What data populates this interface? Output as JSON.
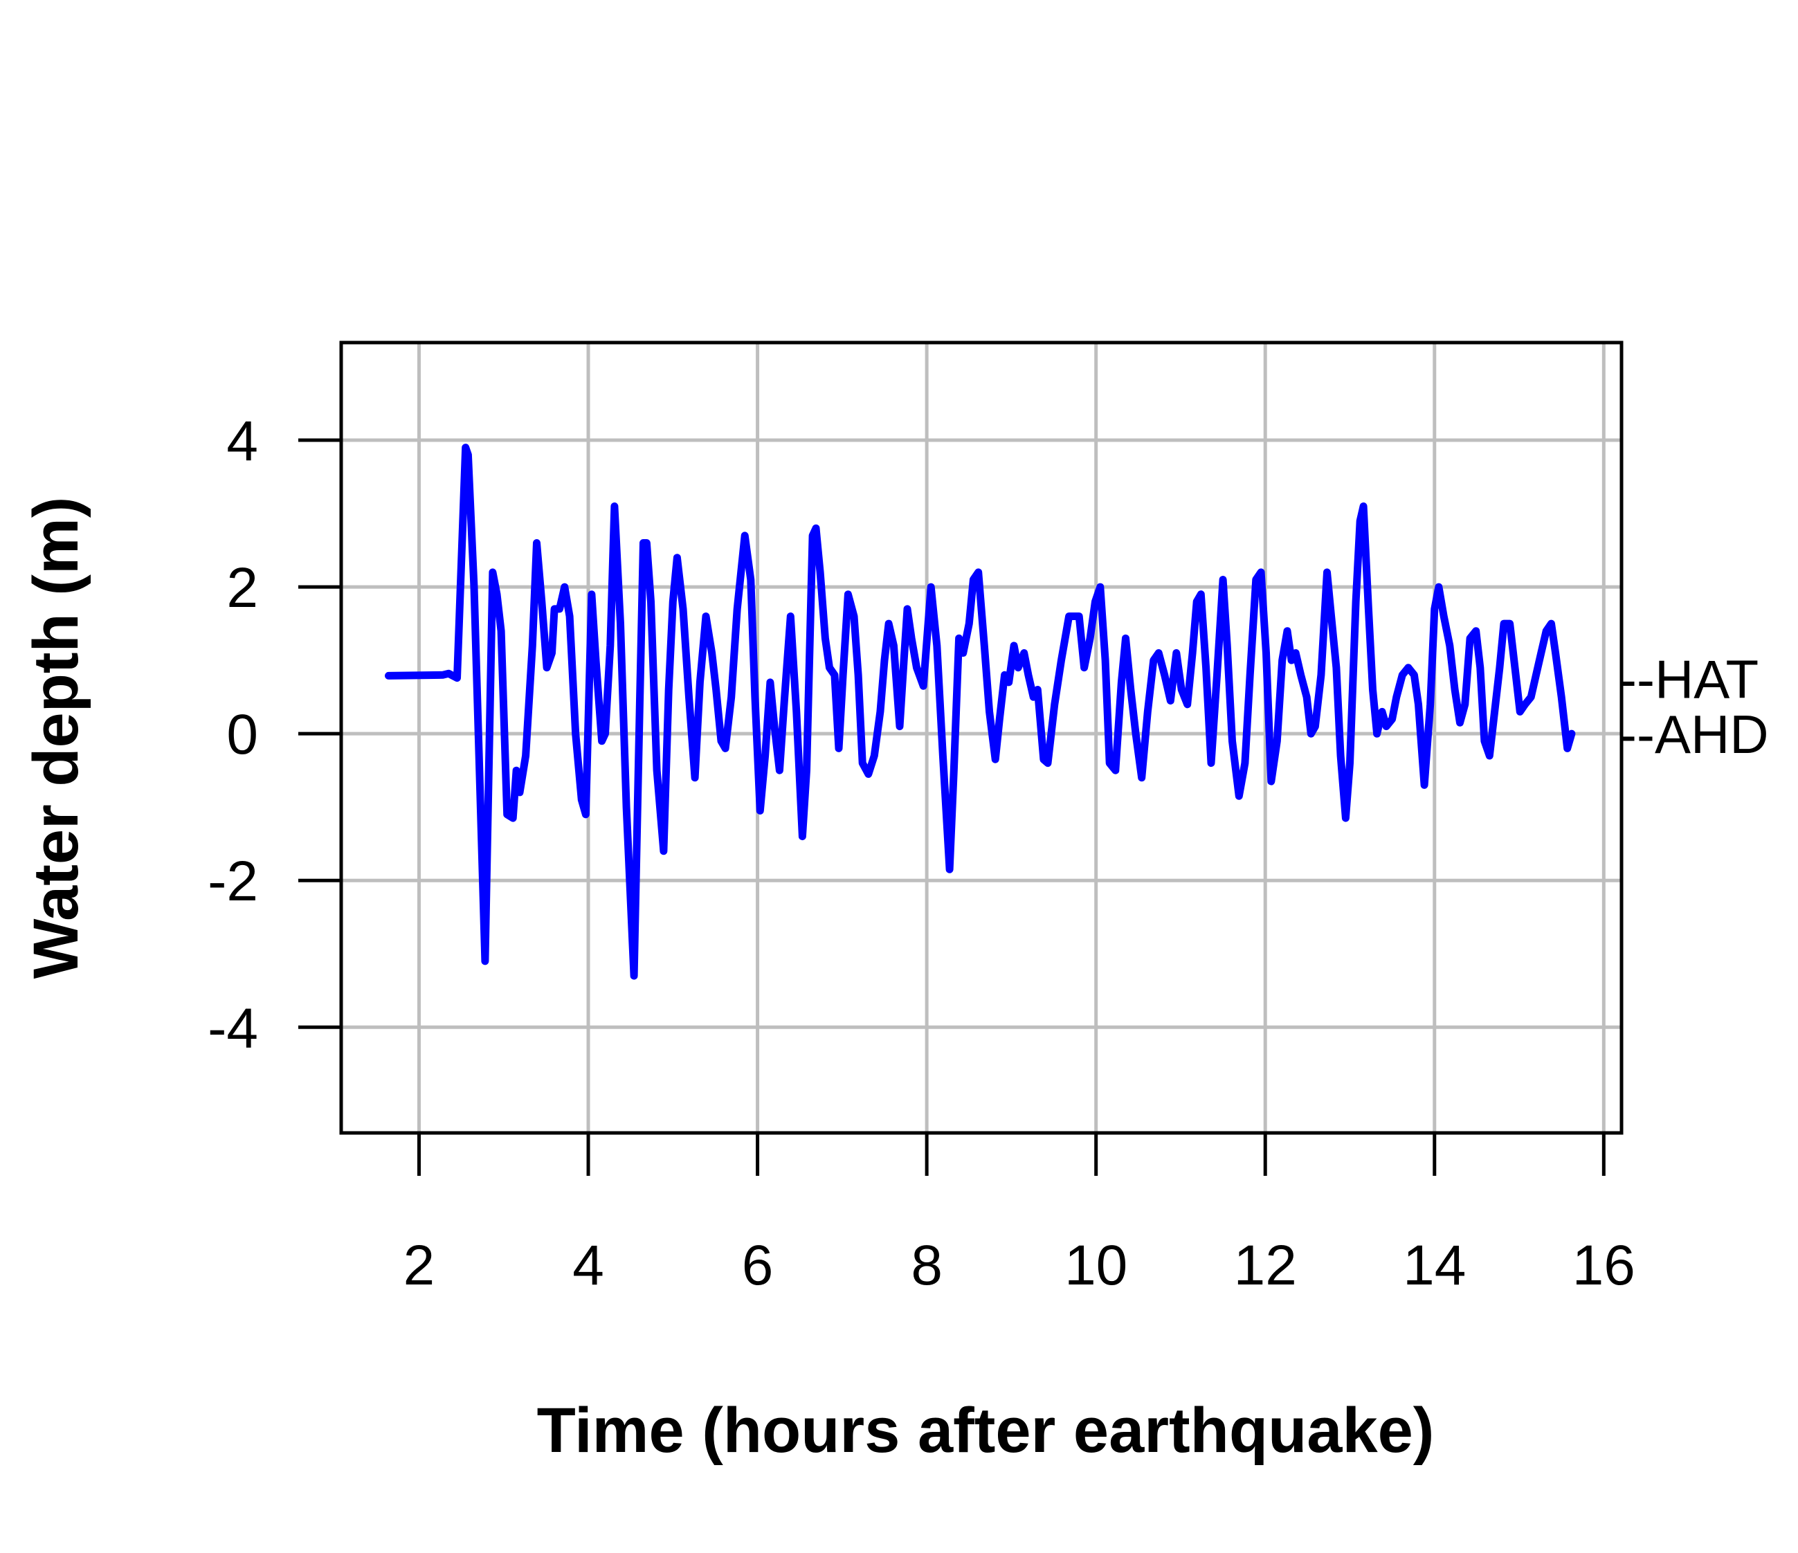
{
  "chart_data": {
    "type": "line",
    "title": "",
    "xlabel": "Time (hours after earthquake)",
    "ylabel": "Water depth (m)",
    "xlim": [
      1.08,
      16.21
    ],
    "ylim": [
      -5.44,
      5.33
    ],
    "grid": true,
    "xticks": [
      2,
      4,
      6,
      8,
      10,
      12,
      14,
      16
    ],
    "xtick_labels": [
      "2",
      "4",
      "6",
      "8",
      "10",
      "12",
      "14",
      "16"
    ],
    "yticks": [
      -4,
      -2,
      0,
      2,
      4
    ],
    "ytick_labels": [
      "-4",
      "-2",
      "0",
      "2",
      "4"
    ],
    "colors": {
      "series": "#0000ff",
      "grid": "#bebebe",
      "axis": "#000000"
    },
    "annotations": [
      {
        "label": "--HAT",
        "y": 0.75
      },
      {
        "label": "--AHD",
        "y": 0.0
      }
    ],
    "series": [
      {
        "name": "Water depth",
        "x": [
          1.64,
          2.28,
          2.35,
          2.45,
          2.55,
          2.58,
          2.65,
          2.78,
          2.87,
          2.92,
          2.97,
          3.04,
          3.11,
          3.15,
          3.19,
          3.26,
          3.34,
          3.39,
          3.45,
          3.51,
          3.57,
          3.6,
          3.66,
          3.72,
          3.78,
          3.85,
          3.92,
          3.97,
          4.04,
          4.09,
          4.16,
          4.2,
          4.26,
          4.31,
          4.38,
          4.45,
          4.54,
          4.61,
          4.65,
          4.69,
          4.74,
          4.81,
          4.89,
          4.95,
          5.0,
          5.05,
          5.12,
          5.19,
          5.26,
          5.32,
          5.39,
          5.46,
          5.51,
          5.57,
          5.62,
          5.69,
          5.76,
          5.85,
          5.92,
          5.97,
          6.03,
          6.09,
          6.15,
          6.2,
          6.26,
          6.32,
          6.39,
          6.46,
          6.53,
          6.58,
          6.65,
          6.69,
          6.74,
          6.8,
          6.85,
          6.91,
          6.96,
          7.01,
          7.07,
          7.14,
          7.19,
          7.24,
          7.31,
          7.38,
          7.45,
          7.5,
          7.55,
          7.61,
          7.68,
          7.73,
          7.77,
          7.82,
          7.88,
          7.96,
          8.05,
          8.12,
          8.19,
          8.27,
          8.32,
          8.38,
          8.43,
          8.5,
          8.55,
          8.61,
          8.68,
          8.74,
          8.81,
          8.86,
          8.92,
          8.97,
          9.03,
          9.08,
          9.15,
          9.2,
          9.26,
          9.31,
          9.38,
          9.43,
          9.51,
          9.59,
          9.68,
          9.74,
          9.8,
          9.86,
          9.93,
          9.99,
          10.05,
          10.11,
          10.16,
          10.23,
          10.3,
          10.35,
          10.41,
          10.47,
          10.54,
          10.61,
          10.68,
          10.74,
          10.81,
          10.88,
          10.95,
          11.01,
          11.08,
          11.14,
          11.19,
          11.24,
          11.3,
          11.36,
          11.43,
          11.5,
          11.55,
          11.61,
          11.69,
          11.76,
          11.82,
          11.89,
          11.95,
          12.01,
          12.07,
          12.14,
          12.2,
          12.26,
          12.31,
          12.36,
          12.42,
          12.49,
          12.54,
          12.59,
          12.66,
          12.73,
          12.78,
          12.84,
          12.89,
          12.95,
          13.0,
          13.07,
          13.12,
          13.16,
          13.22,
          13.27,
          13.32,
          13.38,
          13.43,
          13.5,
          13.55,
          13.62,
          13.69,
          13.76,
          13.81,
          13.88,
          13.95,
          14.0,
          14.05,
          14.11,
          14.18,
          14.24,
          14.3,
          14.36,
          14.42,
          14.49,
          14.54,
          14.59,
          14.65,
          14.7,
          14.77,
          14.82,
          14.89,
          14.96,
          15.01,
          15.07,
          15.14,
          15.2,
          15.26,
          15.32,
          15.38,
          15.43,
          15.5,
          15.57,
          15.62
        ],
        "y": [
          0.79,
          0.8,
          0.82,
          0.76,
          3.9,
          3.8,
          2.0,
          -3.1,
          2.2,
          1.9,
          1.4,
          -1.1,
          -1.15,
          -0.5,
          -0.8,
          -0.3,
          1.2,
          2.6,
          1.8,
          0.9,
          1.1,
          1.7,
          1.7,
          2.0,
          1.6,
          0.0,
          -0.9,
          -1.1,
          1.9,
          1.0,
          -0.1,
          0.0,
          1.2,
          3.1,
          1.5,
          -1.0,
          -3.3,
          0.5,
          2.6,
          2.6,
          1.8,
          -0.5,
          -1.6,
          0.6,
          1.8,
          2.4,
          1.7,
          0.5,
          -0.6,
          0.7,
          1.6,
          1.1,
          0.6,
          -0.1,
          -0.2,
          0.5,
          1.7,
          2.7,
          2.1,
          0.5,
          -1.05,
          -0.3,
          0.7,
          0.1,
          -0.5,
          0.5,
          1.6,
          0.3,
          -1.4,
          -0.5,
          2.7,
          2.8,
          2.2,
          1.3,
          0.9,
          0.8,
          -0.2,
          0.8,
          1.9,
          1.6,
          0.8,
          -0.4,
          -0.55,
          -0.3,
          0.3,
          1.0,
          1.5,
          1.2,
          0.1,
          1.0,
          1.7,
          1.3,
          0.9,
          0.65,
          2.0,
          1.2,
          -0.3,
          -1.85,
          -0.5,
          1.3,
          1.1,
          1.5,
          2.1,
          2.2,
          1.2,
          0.3,
          -0.35,
          0.2,
          0.8,
          0.7,
          1.2,
          0.9,
          1.1,
          0.8,
          0.5,
          0.6,
          -0.35,
          -0.4,
          0.4,
          1.0,
          1.6,
          1.6,
          1.6,
          0.9,
          1.3,
          1.8,
          2.0,
          1.0,
          -0.4,
          -0.5,
          0.7,
          1.3,
          0.6,
          0.0,
          -0.6,
          0.3,
          1.0,
          1.1,
          0.8,
          0.45,
          1.1,
          0.6,
          0.4,
          1.1,
          1.8,
          1.9,
          0.9,
          -0.4,
          0.8,
          2.1,
          1.2,
          -0.1,
          -0.85,
          -0.4,
          0.8,
          2.1,
          2.2,
          1.1,
          -0.65,
          -0.1,
          1.0,
          1.4,
          1.0,
          1.1,
          0.8,
          0.5,
          0.0,
          0.1,
          0.8,
          2.2,
          1.6,
          0.9,
          -0.3,
          -1.15,
          -0.4,
          1.8,
          2.9,
          3.1,
          1.7,
          0.6,
          0.0,
          0.3,
          0.1,
          0.2,
          0.5,
          0.8,
          0.9,
          0.8,
          0.4,
          -0.7,
          0.4,
          1.7,
          2.0,
          1.6,
          1.2,
          0.6,
          0.15,
          0.4,
          1.3,
          1.4,
          0.9,
          -0.1,
          -0.3,
          0.2,
          0.9,
          1.5,
          1.5,
          0.8,
          0.3,
          0.4,
          0.5,
          0.8,
          1.1,
          1.4,
          1.5,
          1.1,
          0.5,
          -0.2,
          0.0
        ]
      }
    ]
  }
}
